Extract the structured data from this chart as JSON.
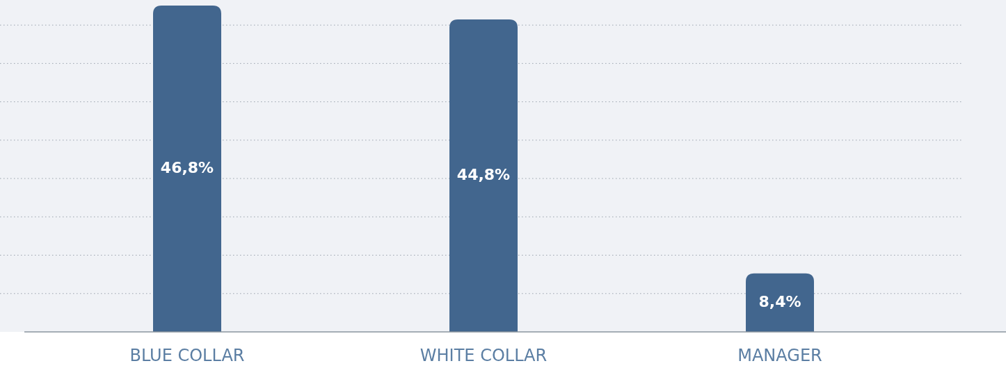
{
  "chart_data": {
    "type": "bar",
    "categories": [
      "BLUE COLLAR",
      "WHITE COLLAR",
      "MANAGER"
    ],
    "values": [
      46.8,
      44.8,
      8.4
    ],
    "value_labels": [
      "46,8%",
      "44,8%",
      "8,4%"
    ],
    "color": "#42668e",
    "ylim": [
      0,
      47.6
    ],
    "yticks": [
      {
        "value": 5.5,
        "label": null
      },
      {
        "value": 11,
        "label": null
      },
      {
        "value": 16.5,
        "label": null
      },
      {
        "value": 22,
        "label": null
      },
      {
        "value": 27.5,
        "label": null
      },
      {
        "value": 33,
        "label": null
      },
      {
        "value": 38.5,
        "label": null
      },
      {
        "value": 44,
        "label": null
      }
    ],
    "grid": "y",
    "tick_labels": "x"
  }
}
